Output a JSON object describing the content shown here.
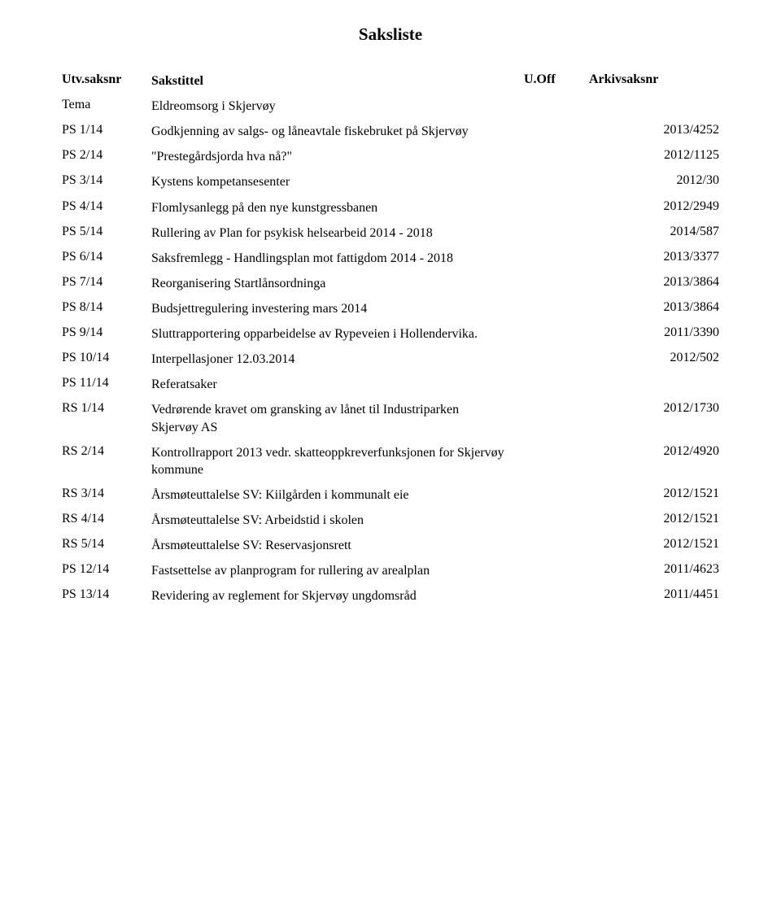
{
  "title": "Saksliste",
  "headers": {
    "saksnr": "Utv.saksnr",
    "sakstittel": "Sakstittel",
    "uoff": "U.Off",
    "arkiv": "Arkivsaksnr"
  },
  "rows": [
    {
      "saksnr": "Tema",
      "title": "Eldreomsorg i Skjervøy",
      "arkiv": ""
    },
    {
      "saksnr": "PS 1/14",
      "title": "Godkjenning av salgs- og låneavtale fiskebruket på Skjervøy",
      "arkiv": "2013/4252"
    },
    {
      "saksnr": "PS 2/14",
      "title": "\"Prestegårdsjorda hva nå?\"",
      "arkiv": "2012/1125"
    },
    {
      "saksnr": "PS 3/14",
      "title": "Kystens kompetansesenter",
      "arkiv": "2012/30"
    },
    {
      "saksnr": "PS 4/14",
      "title": "Flomlysanlegg  på den nye kunstgressbanen",
      "arkiv": "2012/2949"
    },
    {
      "saksnr": "PS 5/14",
      "title": "Rullering av Plan for psykisk helsearbeid 2014 - 2018",
      "arkiv": "2014/587"
    },
    {
      "saksnr": "PS 6/14",
      "title": "Saksfremlegg - Handlingsplan mot fattigdom 2014 - 2018",
      "arkiv": "2013/3377"
    },
    {
      "saksnr": "PS 7/14",
      "title": "Reorganisering Startlånsordninga",
      "arkiv": "2013/3864"
    },
    {
      "saksnr": "PS 8/14",
      "title": "Budsjettregulering investering mars 2014",
      "arkiv": "2013/3864"
    },
    {
      "saksnr": "PS 9/14",
      "title": "Sluttrapportering opparbeidelse av Rypeveien i Hollendervika.",
      "arkiv": "2011/3390"
    },
    {
      "saksnr": "PS 10/14",
      "title": "Interpellasjoner 12.03.2014",
      "arkiv": "2012/502"
    },
    {
      "saksnr": "PS 11/14",
      "title": "Referatsaker",
      "arkiv": ""
    },
    {
      "saksnr": "RS 1/14",
      "title": "Vedrørende kravet om gransking av lånet til Industriparken Skjervøy AS",
      "arkiv": "2012/1730"
    },
    {
      "saksnr": "RS 2/14",
      "title": "Kontrollrapport 2013 vedr. skatteoppkreverfunksjonen for Skjervøy kommune",
      "arkiv": "2012/4920"
    },
    {
      "saksnr": "RS 3/14",
      "title": "Årsmøteuttalelse SV: Kiilgården i kommunalt eie",
      "arkiv": "2012/1521"
    },
    {
      "saksnr": "RS 4/14",
      "title": "Årsmøteuttalelse SV: Arbeidstid i skolen",
      "arkiv": "2012/1521"
    },
    {
      "saksnr": "RS 5/14",
      "title": "Årsmøteuttalelse SV: Reservasjonsrett",
      "arkiv": "2012/1521"
    },
    {
      "saksnr": "PS 12/14",
      "title": "Fastsettelse av planprogram for rullering av arealplan",
      "arkiv": "2011/4623"
    },
    {
      "saksnr": "PS 13/14",
      "title": "Revidering av reglement for Skjervøy ungdomsråd",
      "arkiv": "2011/4451"
    }
  ]
}
